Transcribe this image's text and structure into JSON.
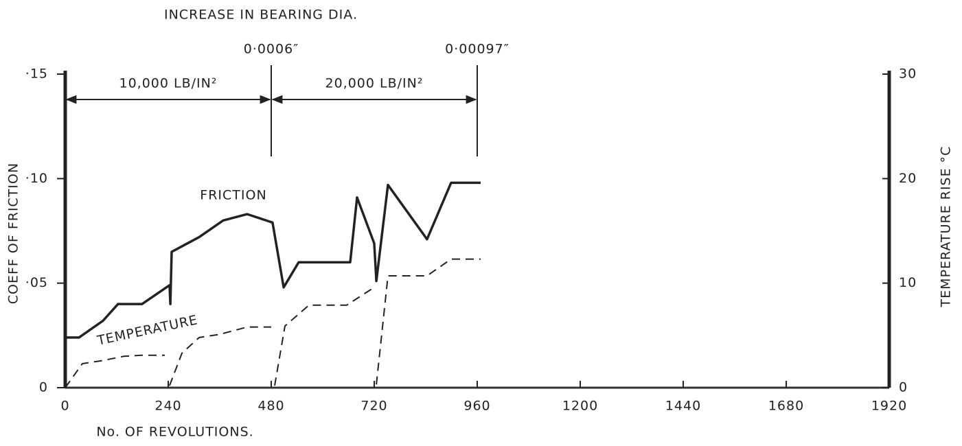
{
  "chart_data": {
    "type": "line",
    "title": "INCREASE IN BEARING DIA.",
    "x_label": "No. OF REVOLUTIONS.",
    "y_label": "COEFF OF FRICTION",
    "y2_label": "TEMPERATURE RISE °C",
    "xlim": [
      0,
      1920
    ],
    "xticks": [
      0,
      240,
      480,
      720,
      960,
      1200,
      1440,
      1680,
      1920
    ],
    "ylim": [
      0,
      0.15
    ],
    "yticks": [
      {
        "value": 0,
        "label": "0"
      },
      {
        "value": 0.05,
        "label": "·05"
      },
      {
        "value": 0.1,
        "label": "·10"
      },
      {
        "value": 0.15,
        "label": "·15"
      }
    ],
    "y2lim": [
      0,
      30
    ],
    "y2ticks": [
      0,
      10,
      20,
      30
    ],
    "markers": [
      {
        "x": 480,
        "label": "0·0006″"
      },
      {
        "x": 960,
        "label": "0·00097″"
      }
    ],
    "ranges": [
      {
        "from": 0,
        "to": 480,
        "label": "10,000 LB/IN²"
      },
      {
        "from": 480,
        "to": 960,
        "label": "20,000 LB/IN²"
      }
    ],
    "series": [
      {
        "name": "FRICTION",
        "color": "#222222",
        "dashed": false,
        "x": [
          0,
          32,
          88,
          123,
          179,
          243,
          245,
          248,
          312,
          368,
          424,
          483,
          509,
          544,
          664,
          680,
          720,
          725,
          752,
          843,
          899,
          968
        ],
        "values": [
          0.024,
          0.024,
          0.032,
          0.04,
          0.04,
          0.049,
          0.04,
          0.065,
          0.072,
          0.08,
          0.083,
          0.079,
          0.048,
          0.06,
          0.06,
          0.091,
          0.069,
          0.051,
          0.097,
          0.071,
          0.098,
          0.098
        ]
      },
      {
        "name": "TEMPERATURE",
        "color": "#222222",
        "dashed": true,
        "axis": "y2",
        "x": [
          0,
          40,
          88,
          136,
          176,
          232,
          240,
          243,
          272,
          312,
          360,
          424,
          480,
          484,
          488,
          512,
          568,
          656,
          720,
          722,
          725,
          752,
          843,
          899,
          968
        ],
        "values": [
          0,
          2.3,
          2.6,
          3.0,
          3.1,
          3.1,
          null,
          0.2,
          3.3,
          4.8,
          5.1,
          5.8,
          5.8,
          null,
          0.2,
          5.9,
          7.9,
          7.9,
          9.6,
          null,
          0.3,
          10.7,
          10.7,
          12.3,
          12.3
        ]
      }
    ]
  }
}
